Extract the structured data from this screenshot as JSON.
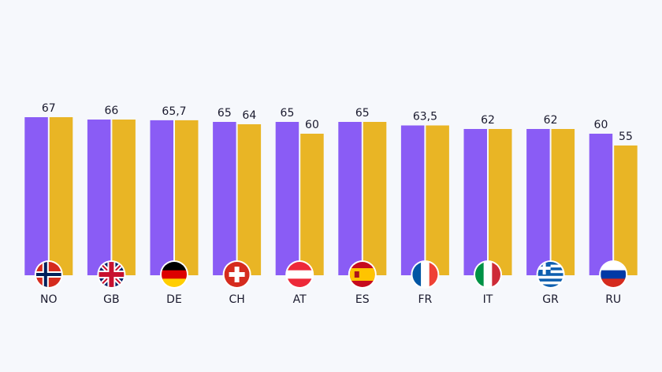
{
  "chart_data": {
    "type": "bar",
    "categories": [
      "NO",
      "GB",
      "DE",
      "CH",
      "AT",
      "ES",
      "FR",
      "IT",
      "GR",
      "RU"
    ],
    "series": [
      {
        "color": "#8a5cf5",
        "values": [
          67,
          66,
          65.7,
          65,
          65,
          65,
          63.5,
          62,
          62,
          60
        ],
        "value_labels": [
          "67",
          "66",
          "65,7",
          "65",
          "65",
          "65",
          "63,5",
          "62",
          "62",
          "60"
        ]
      },
      {
        "color": "#e9b525",
        "values": [
          67,
          66,
          65.7,
          64,
          60,
          65,
          63.5,
          62,
          62,
          55
        ]
      }
    ],
    "ylim": [
      0,
      70
    ]
  }
}
